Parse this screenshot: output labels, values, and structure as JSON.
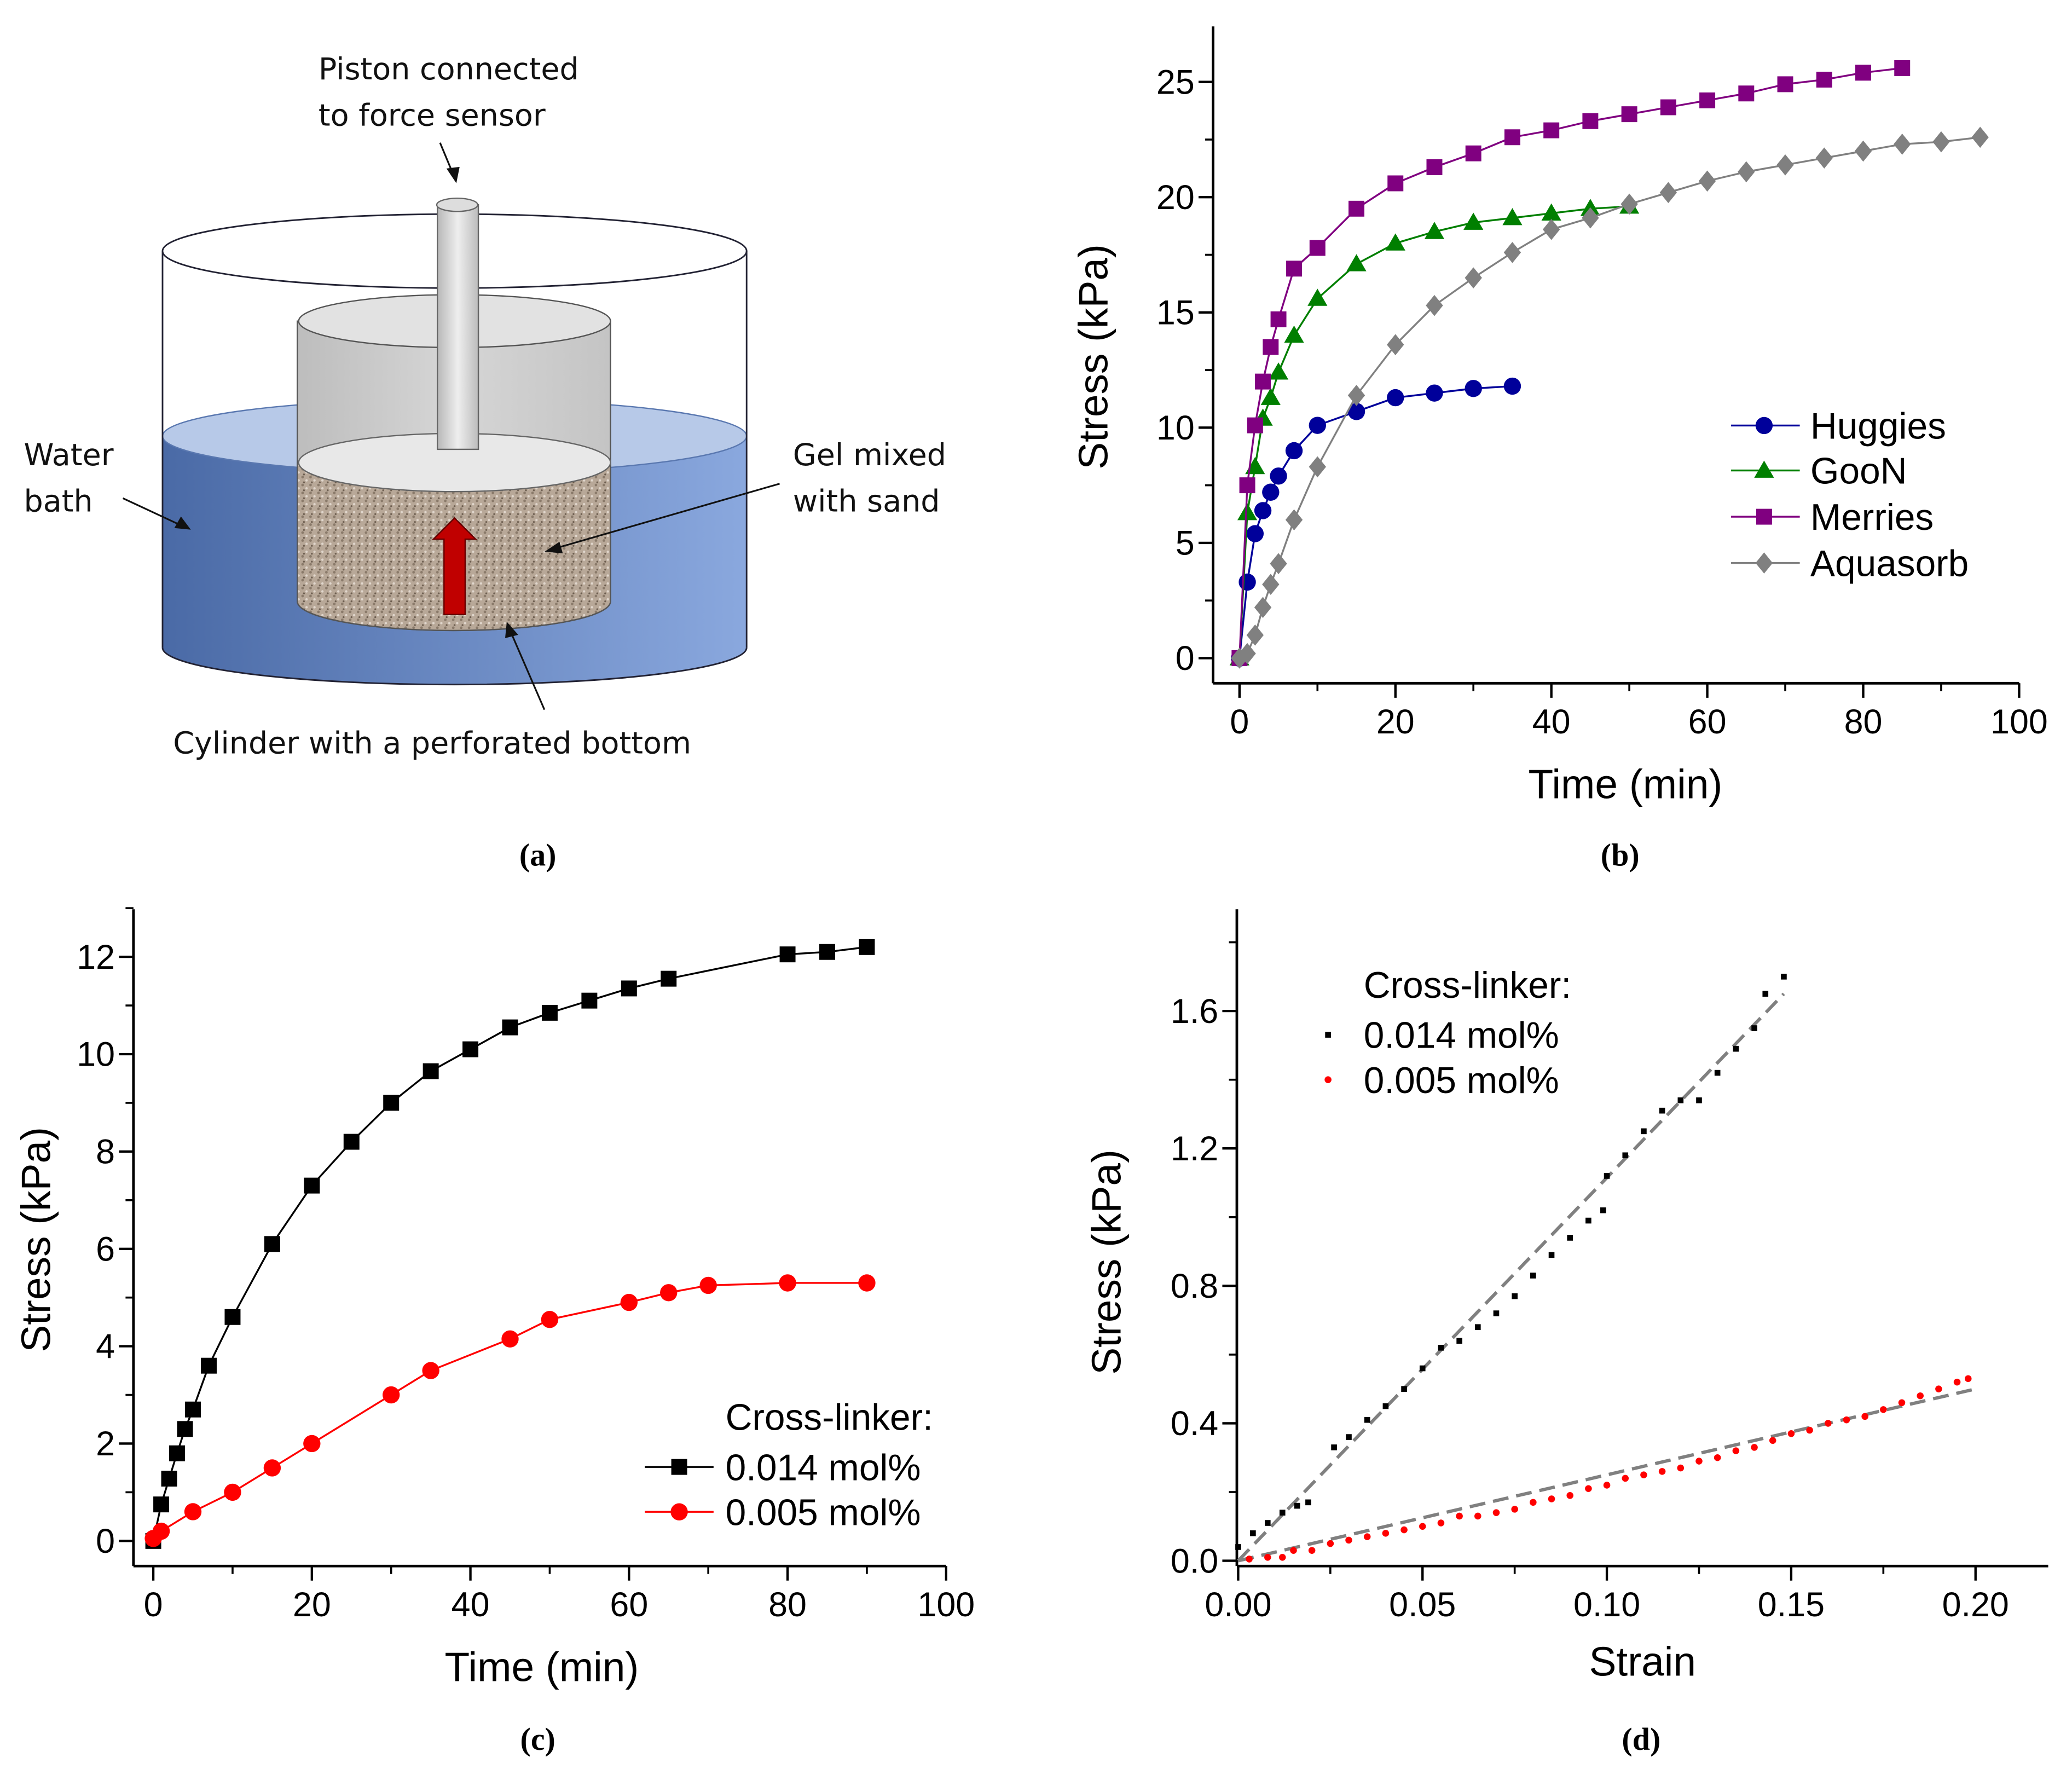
{
  "diagram": {
    "piston_label_1": "Piston connected",
    "piston_label_2": "to force sensor",
    "water_label_1": "Water",
    "water_label_2": "bath",
    "gel_label_1": "Gel mixed",
    "gel_label_2": "with sand",
    "cylinder_label": "Cylinder with a perforated bottom",
    "water_color": "#6f8fc8",
    "arrow_color": "#c00000"
  },
  "captions": {
    "a": "(a)",
    "b": "(b)",
    "c": "(c)",
    "d": "(d)"
  },
  "chart_data": [
    {
      "id": "b",
      "type": "line",
      "xlabel": "Time (min)",
      "ylabel": "Stress (kPa)",
      "xlim": [
        0,
        100
      ],
      "ylim": [
        0,
        25
      ],
      "xticks": [
        0,
        20,
        40,
        60,
        80,
        100
      ],
      "yticks": [
        0,
        5,
        10,
        15,
        20,
        25
      ],
      "legend_position": "right",
      "series": [
        {
          "name": "Huggies",
          "color": "#00009a",
          "marker": "circle",
          "x": [
            0,
            1,
            2,
            3,
            4,
            5,
            7,
            10,
            15,
            20,
            25,
            30,
            35
          ],
          "y": [
            0,
            3.3,
            5.4,
            6.4,
            7.2,
            7.9,
            9.0,
            10.1,
            10.7,
            11.3,
            11.5,
            11.7,
            11.8
          ]
        },
        {
          "name": "GooN",
          "color": "#007f00",
          "marker": "triangle",
          "x": [
            0,
            1,
            2,
            3,
            4,
            5,
            7,
            10,
            15,
            20,
            25,
            30,
            35,
            40,
            45,
            50
          ],
          "y": [
            0,
            6.3,
            8.3,
            10.4,
            11.3,
            12.4,
            14.0,
            15.6,
            17.1,
            18.0,
            18.5,
            18.9,
            19.1,
            19.3,
            19.5,
            19.6
          ]
        },
        {
          "name": "Merries",
          "color": "#800080",
          "marker": "square",
          "x": [
            0,
            1,
            2,
            3,
            4,
            5,
            7,
            10,
            15,
            20,
            25,
            30,
            35,
            40,
            45,
            50,
            55,
            60,
            65,
            70,
            75,
            80,
            85
          ],
          "y": [
            0,
            7.5,
            10.1,
            12.0,
            13.5,
            14.7,
            16.9,
            17.8,
            19.5,
            20.6,
            21.3,
            21.9,
            22.6,
            22.9,
            23.3,
            23.6,
            23.9,
            24.2,
            24.5,
            24.9,
            25.1,
            25.4,
            25.6
          ]
        },
        {
          "name": "Aquasorb",
          "color": "#808080",
          "marker": "diamond",
          "x": [
            0,
            1,
            2,
            3,
            4,
            5,
            7,
            10,
            15,
            20,
            25,
            30,
            35,
            40,
            45,
            50,
            55,
            60,
            65,
            70,
            75,
            80,
            85,
            90,
            95
          ],
          "y": [
            0,
            0.2,
            1.0,
            2.2,
            3.2,
            4.1,
            6.0,
            8.3,
            11.4,
            13.6,
            15.3,
            16.5,
            17.6,
            18.6,
            19.1,
            19.7,
            20.2,
            20.7,
            21.1,
            21.4,
            21.7,
            22.0,
            22.3,
            22.4,
            22.6
          ]
        }
      ]
    },
    {
      "id": "c",
      "type": "line",
      "xlabel": "Time (min)",
      "ylabel": "Stress (kPa)",
      "xlim": [
        0,
        100
      ],
      "ylim": [
        0,
        12
      ],
      "xticks": [
        0,
        20,
        40,
        60,
        80,
        100
      ],
      "yticks": [
        0,
        2,
        4,
        6,
        8,
        10,
        12
      ],
      "legend_title": "Cross-linker:",
      "legend_position": "bottom-right",
      "series": [
        {
          "name": "0.014 mol%",
          "color": "#000000",
          "marker": "square",
          "x": [
            0,
            1,
            2,
            3,
            4,
            5,
            7,
            10,
            15,
            20,
            25,
            30,
            35,
            40,
            45,
            50,
            55,
            60,
            65,
            80,
            85,
            90
          ],
          "y": [
            0,
            0.75,
            1.28,
            1.8,
            2.3,
            2.7,
            3.6,
            4.6,
            6.1,
            7.3,
            8.2,
            9.0,
            9.65,
            10.1,
            10.55,
            10.85,
            11.1,
            11.35,
            11.55,
            12.05,
            12.1,
            12.2
          ]
        },
        {
          "name": "0.005 mol%",
          "color": "#ff0000",
          "marker": "circle",
          "x": [
            0,
            1,
            5,
            10,
            15,
            20,
            30,
            35,
            45,
            50,
            60,
            65,
            70,
            80,
            90
          ],
          "y": [
            0.05,
            0.2,
            0.6,
            1.0,
            1.5,
            2.0,
            3.0,
            3.5,
            4.15,
            4.55,
            4.9,
            5.1,
            5.25,
            5.3,
            5.3
          ]
        }
      ]
    },
    {
      "id": "d",
      "type": "scatter",
      "xlabel": "Strain",
      "ylabel": "Stress (kPa)",
      "xlim": [
        0,
        0.22
      ],
      "ylim": [
        0,
        1.9
      ],
      "xticks": [
        "0.00",
        "0.05",
        "0.10",
        "0.15",
        "0.20"
      ],
      "yticks": [
        "0.0",
        "0.4",
        "0.8",
        "1.2",
        "1.6"
      ],
      "legend_title": "Cross-linker:",
      "legend_position": "top-left",
      "series": [
        {
          "name": "0.014 mol%",
          "color": "#000000",
          "marker": "smallsquare",
          "x": [
            0,
            0.004,
            0.008,
            0.012,
            0.016,
            0.019,
            0.026,
            0.03,
            0.035,
            0.04,
            0.045,
            0.05,
            0.055,
            0.06,
            0.065,
            0.07,
            0.075,
            0.08,
            0.085,
            0.09,
            0.095,
            0.099,
            0.1,
            0.105,
            0.11,
            0.115,
            0.12,
            0.125,
            0.13,
            0.135,
            0.14,
            0.143,
            0.148
          ],
          "y": [
            0.04,
            0.08,
            0.11,
            0.14,
            0.16,
            0.17,
            0.33,
            0.36,
            0.41,
            0.45,
            0.5,
            0.56,
            0.62,
            0.64,
            0.68,
            0.72,
            0.77,
            0.83,
            0.89,
            0.94,
            0.99,
            1.02,
            1.12,
            1.18,
            1.25,
            1.31,
            1.34,
            1.34,
            1.42,
            1.49,
            1.55,
            1.65,
            1.7
          ]
        },
        {
          "name": "0.005 mol%",
          "color": "#ff0000",
          "marker": "dot",
          "x": [
            0.003,
            0.008,
            0.012,
            0.015,
            0.02,
            0.025,
            0.03,
            0.035,
            0.04,
            0.045,
            0.05,
            0.055,
            0.06,
            0.065,
            0.07,
            0.075,
            0.08,
            0.085,
            0.09,
            0.095,
            0.1,
            0.105,
            0.11,
            0.115,
            0.12,
            0.125,
            0.13,
            0.135,
            0.14,
            0.145,
            0.15,
            0.155,
            0.16,
            0.165,
            0.17,
            0.175,
            0.18,
            0.185,
            0.19,
            0.195,
            0.198
          ],
          "y": [
            0.005,
            0.01,
            0.01,
            0.03,
            0.03,
            0.05,
            0.06,
            0.07,
            0.08,
            0.09,
            0.1,
            0.11,
            0.13,
            0.13,
            0.14,
            0.15,
            0.17,
            0.18,
            0.19,
            0.21,
            0.22,
            0.24,
            0.25,
            0.26,
            0.27,
            0.29,
            0.3,
            0.32,
            0.33,
            0.35,
            0.37,
            0.38,
            0.4,
            0.41,
            0.42,
            0.44,
            0.46,
            0.48,
            0.5,
            0.52,
            0.53
          ]
        }
      ],
      "fit_lines": [
        {
          "color": "#808080",
          "x": [
            0,
            0.148
          ],
          "y": [
            0,
            1.65
          ]
        },
        {
          "color": "#808080",
          "x": [
            0,
            0.2
          ],
          "y": [
            0,
            0.5
          ]
        }
      ]
    }
  ]
}
